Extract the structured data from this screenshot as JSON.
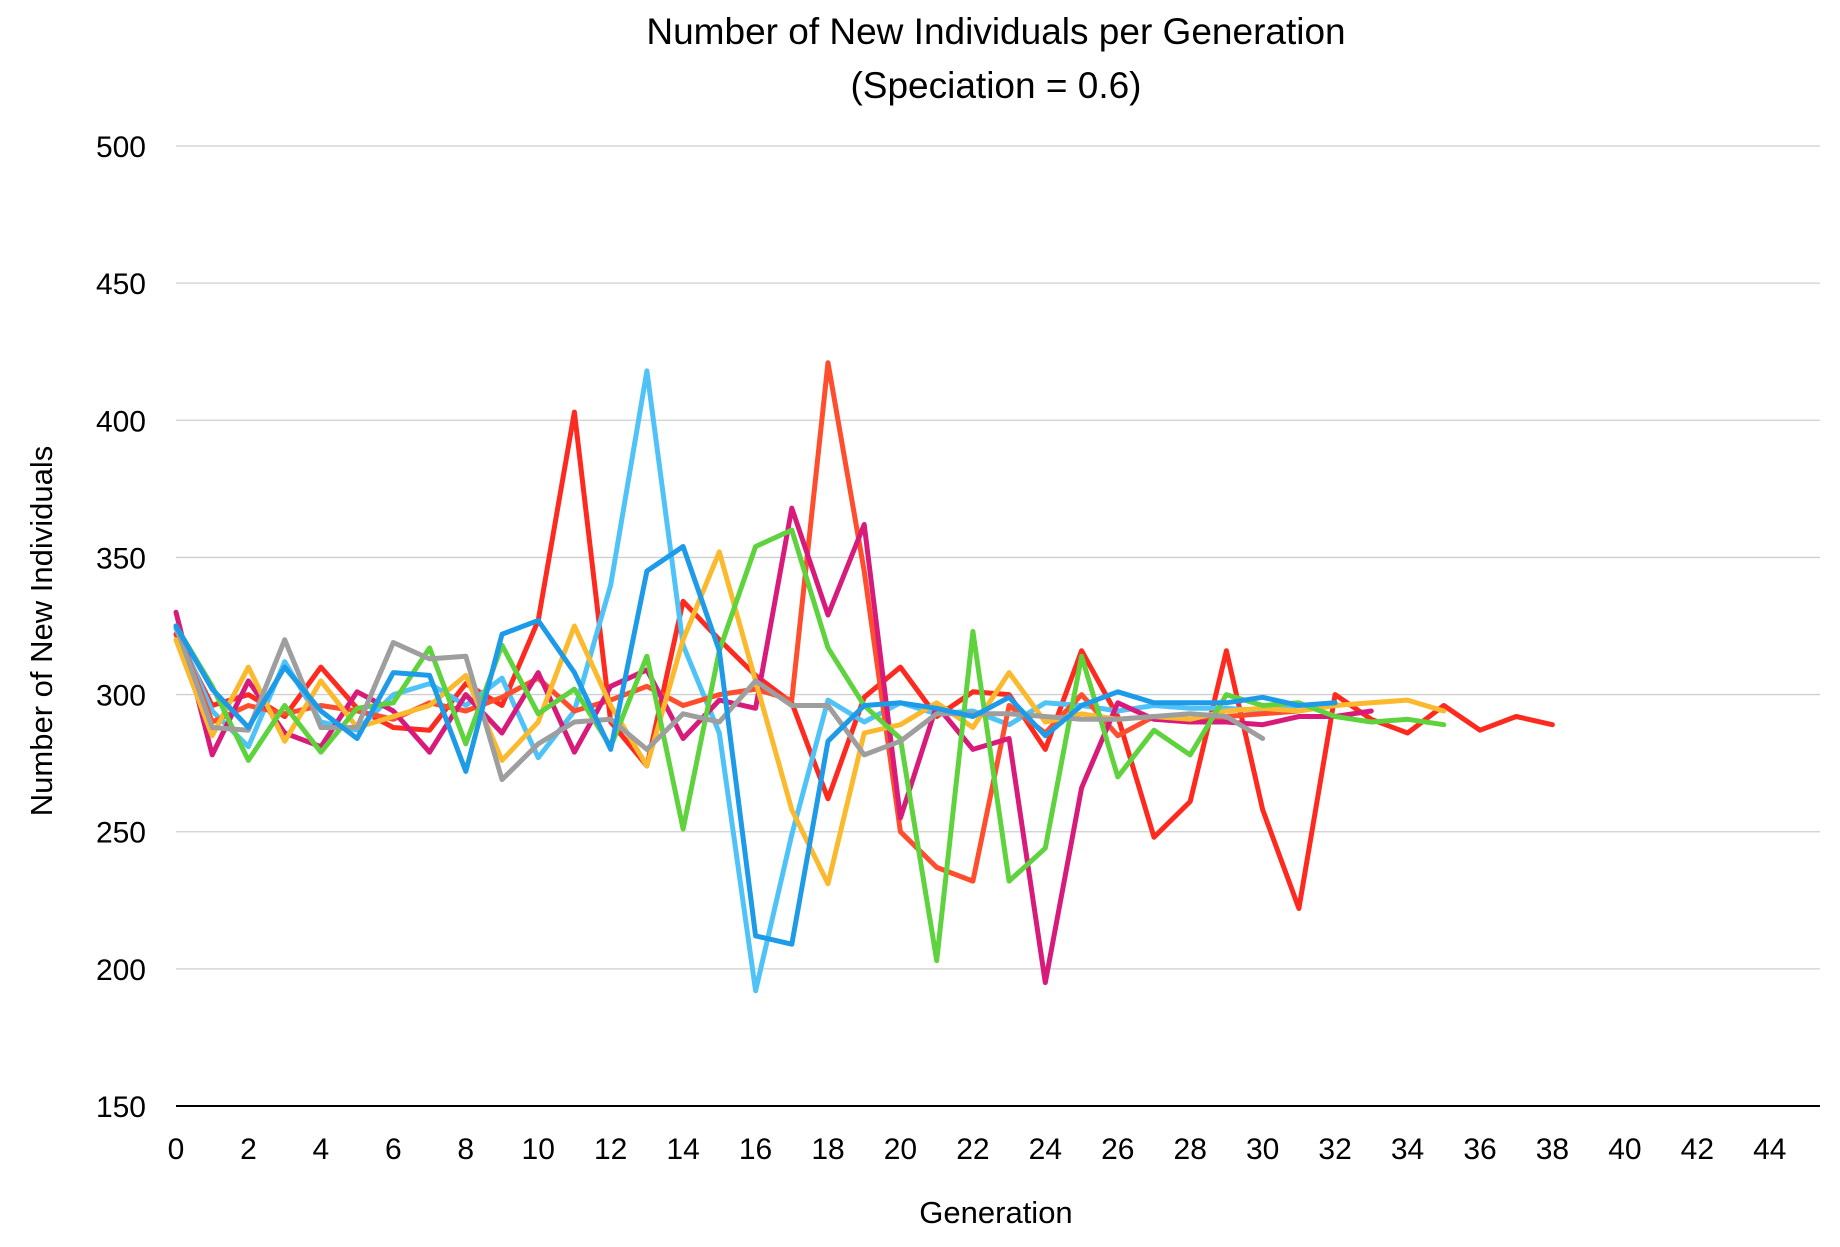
{
  "chart_data": {
    "type": "line",
    "title": "Number of New Individuals per Generation",
    "subtitle": "(Speciation = 0.6)",
    "xlabel": "Generation",
    "ylabel": "Number of New Individuals",
    "xlim": [
      0,
      45
    ],
    "ylim": [
      150,
      500
    ],
    "x_ticks": [
      0,
      2,
      4,
      6,
      8,
      10,
      12,
      14,
      16,
      18,
      20,
      22,
      24,
      26,
      28,
      30,
      32,
      34,
      36,
      38,
      40,
      42,
      44
    ],
    "y_ticks": [
      150,
      200,
      250,
      300,
      350,
      400,
      450,
      500
    ],
    "grid": true,
    "legend": "none",
    "series": [
      {
        "color": "#ff2a1f",
        "values": [
          322,
          296,
          300,
          292,
          310,
          295,
          288,
          287,
          304,
          296,
          327,
          403,
          290,
          274,
          334,
          320,
          307,
          297,
          262,
          299,
          310,
          292,
          301,
          300,
          280,
          316,
          292,
          248,
          261,
          316,
          258,
          222,
          300,
          291,
          286,
          296,
          287,
          292,
          289
        ]
      },
      {
        "color": "#4fc3f7",
        "values": [
          324,
          294,
          281,
          312,
          290,
          287,
          300,
          304,
          296,
          306,
          277,
          294,
          340,
          418,
          318,
          286,
          192,
          249,
          298,
          290,
          297,
          293,
          294,
          289,
          297,
          296,
          294,
          296,
          295,
          295,
          294,
          296
        ]
      },
      {
        "color": "#ff4d2e",
        "values": [
          325,
          290,
          296,
          293,
          296,
          294,
          291,
          297,
          294,
          299,
          306,
          294,
          298,
          303,
          296,
          300,
          302,
          298,
          421,
          345,
          250,
          237,
          232,
          296,
          286,
          300,
          285,
          292,
          290,
          292,
          293,
          294
        ]
      },
      {
        "color": "#d81b7a",
        "values": [
          330,
          278,
          305,
          286,
          281,
          301,
          294,
          279,
          300,
          286,
          308,
          279,
          303,
          309,
          284,
          298,
          295,
          368,
          329,
          362,
          255,
          296,
          280,
          284,
          195,
          266,
          297,
          291,
          290,
          290,
          289,
          292,
          292,
          294
        ]
      },
      {
        "color": "#fbb92e",
        "values": [
          320,
          285,
          310,
          283,
          305,
          288,
          292,
          296,
          307,
          276,
          290,
          325,
          296,
          274,
          320,
          352,
          305,
          258,
          231,
          286,
          289,
          297,
          288,
          308,
          290,
          293,
          291,
          292,
          291,
          294,
          295,
          294,
          296,
          297,
          298,
          294
        ]
      },
      {
        "color": "#5ed33d",
        "values": [
          325,
          303,
          276,
          296,
          279,
          295,
          297,
          317,
          282,
          318,
          293,
          302,
          281,
          314,
          251,
          316,
          354,
          360,
          317,
          296,
          284,
          203,
          323,
          232,
          244,
          314,
          270,
          287,
          278,
          300,
          296,
          297,
          292,
          290,
          291,
          289
        ]
      },
      {
        "color": "#9e9e9e",
        "values": [
          325,
          288,
          287,
          320,
          288,
          288,
          319,
          313,
          314,
          269,
          282,
          290,
          291,
          280,
          293,
          290,
          305,
          296,
          296,
          278,
          283,
          293,
          293,
          293,
          292,
          291,
          291,
          292,
          293,
          292,
          284
        ]
      },
      {
        "color": "#1e9be8",
        "values": [
          325,
          302,
          288,
          310,
          294,
          284,
          308,
          307,
          272,
          322,
          327,
          308,
          280,
          345,
          354,
          316,
          212,
          209,
          283,
          296,
          297,
          295,
          292,
          299,
          285,
          296,
          301,
          297,
          297,
          297,
          299,
          296,
          297
        ]
      }
    ]
  }
}
